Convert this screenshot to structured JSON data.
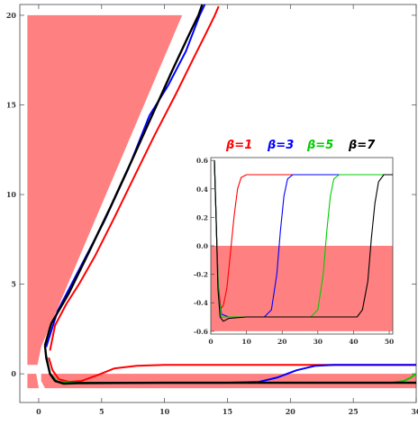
{
  "chart_data": [
    {
      "type": "line",
      "title": "",
      "xlabel": "",
      "ylabel": "",
      "xlim": [
        -1.5,
        30
      ],
      "ylim": [
        -1.6,
        20.6
      ],
      "x_ticks": [
        0,
        5,
        10,
        15,
        20,
        25,
        30
      ],
      "y_ticks": [
        0,
        5,
        10,
        15,
        20
      ],
      "x_tick_labels": [
        "0",
        "5",
        "10",
        "15",
        "20",
        "25",
        "30"
      ],
      "y_tick_labels": [
        "0",
        "5",
        "10",
        "15",
        "20"
      ],
      "shaded_region": {
        "color": "#ff8080",
        "upper_band": [
          [
            -0.9,
            20.0
          ],
          [
            11.4,
            20.0
          ],
          [
            0.2,
            1.5
          ],
          [
            -0.1,
            0.5
          ],
          [
            -0.9,
            0.5
          ]
        ],
        "lower_band": [
          [
            -0.9,
            0.0
          ],
          [
            -0.2,
            0.0
          ],
          [
            0.0,
            -0.8
          ],
          [
            -0.9,
            -0.8
          ]
        ],
        "notch_band": [
          [
            0.2,
            0.0
          ],
          [
            30,
            0.0
          ],
          [
            30,
            -0.8
          ],
          [
            0.5,
            -0.8
          ],
          [
            0.2,
            -0.4
          ]
        ]
      },
      "series": [
        {
          "color": "#ff0000",
          "points": [
            [
              0.9,
              1.3
            ],
            [
              1.3,
              2.7
            ],
            [
              2.2,
              3.9
            ],
            [
              3.2,
              5.0
            ],
            [
              4.5,
              6.6
            ],
            [
              6.0,
              8.7
            ],
            [
              7.6,
              11.0
            ],
            [
              9.2,
              13.3
            ],
            [
              10.9,
              15.6
            ],
            [
              12.3,
              17.6
            ],
            [
              13.3,
              19.0
            ],
            [
              14.0,
              20.0
            ],
            [
              14.3,
              20.5
            ]
          ],
          "tail_points": [
            [
              0.8,
              0.9
            ],
            [
              1.1,
              0.2
            ],
            [
              1.6,
              -0.3
            ],
            [
              2.4,
              -0.45
            ],
            [
              3.4,
              -0.4
            ],
            [
              4.6,
              -0.1
            ],
            [
              6.0,
              0.3
            ],
            [
              7.8,
              0.45
            ],
            [
              10.0,
              0.5
            ],
            [
              15.0,
              0.5
            ],
            [
              20.0,
              0.5
            ],
            [
              25.0,
              0.5
            ],
            [
              30.0,
              0.5
            ]
          ]
        },
        {
          "color": "#0000ff",
          "points": [
            [
              0.6,
              1.5
            ],
            [
              1.5,
              3.5
            ],
            [
              3.2,
              5.8
            ],
            [
              5.2,
              8.5
            ],
            [
              7.1,
              11.4
            ],
            [
              8.8,
              14.4
            ],
            [
              10.3,
              16.1
            ],
            [
              11.7,
              18.0
            ],
            [
              12.8,
              20.0
            ],
            [
              13.2,
              20.6
            ]
          ],
          "tail_points": [
            [
              0.6,
              1.0
            ],
            [
              0.9,
              0.0
            ],
            [
              1.5,
              -0.45
            ],
            [
              3.0,
              -0.5
            ],
            [
              8.0,
              -0.5
            ],
            [
              15.0,
              -0.5
            ],
            [
              17.5,
              -0.45
            ],
            [
              19.0,
              -0.2
            ],
            [
              20.5,
              0.2
            ],
            [
              22.0,
              0.45
            ],
            [
              23.5,
              0.5
            ],
            [
              30.0,
              0.5
            ]
          ]
        },
        {
          "color": "#00cc00",
          "points": [],
          "tail_points": [
            [
              0.6,
              1.0
            ],
            [
              0.9,
              0.0
            ],
            [
              1.5,
              -0.45
            ],
            [
              3.0,
              -0.5
            ],
            [
              10.0,
              -0.5
            ],
            [
              20.0,
              -0.5
            ],
            [
              28.0,
              -0.5
            ],
            [
              29.0,
              -0.4
            ],
            [
              29.6,
              -0.2
            ],
            [
              30.0,
              0.0
            ]
          ]
        },
        {
          "color": "#000000",
          "points": [
            [
              0.5,
              1.6
            ],
            [
              1.0,
              2.8
            ],
            [
              2.4,
              4.5
            ],
            [
              4.0,
              6.8
            ],
            [
              5.7,
              9.3
            ],
            [
              7.4,
              11.9
            ],
            [
              9.0,
              14.4
            ],
            [
              10.6,
              16.9
            ],
            [
              12.0,
              19.0
            ],
            [
              12.7,
              20.0
            ],
            [
              13.0,
              20.6
            ]
          ],
          "tail_points": [
            [
              0.5,
              1.6
            ],
            [
              0.6,
              0.9
            ],
            [
              0.9,
              0.0
            ],
            [
              1.3,
              -0.4
            ],
            [
              2.0,
              -0.55
            ],
            [
              3.0,
              -0.52
            ],
            [
              10.0,
              -0.5
            ],
            [
              20.0,
              -0.5
            ],
            [
              30.0,
              -0.5
            ]
          ]
        }
      ]
    },
    {
      "type": "line",
      "title": "",
      "xlabel": "",
      "ylabel": "",
      "xlim": [
        0,
        51
      ],
      "ylim": [
        -0.62,
        0.62
      ],
      "x_ticks": [
        0,
        10,
        20,
        30,
        40,
        50
      ],
      "y_ticks": [
        -0.6,
        -0.4,
        -0.2,
        0.0,
        0.2,
        0.4,
        0.6
      ],
      "x_tick_labels": [
        "0",
        "10",
        "20",
        "30",
        "40",
        "50"
      ],
      "y_tick_labels": [
        "-0.6",
        "-0.4",
        "-0.2",
        "0.0",
        "0.2",
        "0.4",
        "0.6"
      ],
      "shaded_region": {
        "color": "#ff8080",
        "y_from": -0.6,
        "y_to": 0.0
      },
      "legend_position": "top",
      "series": [
        {
          "name": "β=1",
          "color": "#ff0000",
          "points": [
            [
              1.0,
              0.6
            ],
            [
              1.5,
              0.2
            ],
            [
              2.0,
              -0.25
            ],
            [
              2.8,
              -0.44
            ],
            [
              3.5,
              -0.42
            ],
            [
              4.5,
              -0.3
            ],
            [
              5.5,
              -0.05
            ],
            [
              6.5,
              0.2
            ],
            [
              7.5,
              0.4
            ],
            [
              8.5,
              0.48
            ],
            [
              10.0,
              0.5
            ],
            [
              20.0,
              0.5
            ],
            [
              30.0,
              0.5
            ],
            [
              40.0,
              0.5
            ],
            [
              51.0,
              0.5
            ]
          ]
        },
        {
          "name": "β=3",
          "color": "#0000ff",
          "points": [
            [
              1.0,
              0.6
            ],
            [
              1.6,
              0.1
            ],
            [
              2.2,
              -0.35
            ],
            [
              3.0,
              -0.48
            ],
            [
              5.0,
              -0.5
            ],
            [
              10.0,
              -0.5
            ],
            [
              15.0,
              -0.5
            ],
            [
              17.0,
              -0.45
            ],
            [
              18.5,
              -0.2
            ],
            [
              19.5,
              0.1
            ],
            [
              20.5,
              0.35
            ],
            [
              21.5,
              0.47
            ],
            [
              23.0,
              0.5
            ],
            [
              30.0,
              0.5
            ],
            [
              51.0,
              0.5
            ]
          ]
        },
        {
          "name": "β=5",
          "color": "#00cc00",
          "points": [
            [
              1.0,
              0.6
            ],
            [
              1.6,
              0.1
            ],
            [
              2.2,
              -0.35
            ],
            [
              3.0,
              -0.5
            ],
            [
              10.0,
              -0.5
            ],
            [
              20.0,
              -0.5
            ],
            [
              28.0,
              -0.5
            ],
            [
              30.0,
              -0.45
            ],
            [
              31.5,
              -0.2
            ],
            [
              32.5,
              0.1
            ],
            [
              33.5,
              0.35
            ],
            [
              34.5,
              0.47
            ],
            [
              36.0,
              0.5
            ],
            [
              51.0,
              0.5
            ]
          ]
        },
        {
          "name": "β=7",
          "color": "#000000",
          "points": [
            [
              1.0,
              0.6
            ],
            [
              1.5,
              0.2
            ],
            [
              2.0,
              -0.3
            ],
            [
              2.6,
              -0.5
            ],
            [
              3.5,
              -0.53
            ],
            [
              5.0,
              -0.51
            ],
            [
              10.0,
              -0.5
            ],
            [
              20.0,
              -0.5
            ],
            [
              30.0,
              -0.5
            ],
            [
              41.0,
              -0.5
            ],
            [
              42.5,
              -0.45
            ],
            [
              44.0,
              -0.25
            ],
            [
              45.0,
              0.05
            ],
            [
              46.0,
              0.3
            ],
            [
              47.0,
              0.45
            ],
            [
              48.5,
              0.5
            ],
            [
              51.0,
              0.5
            ]
          ]
        }
      ]
    }
  ]
}
